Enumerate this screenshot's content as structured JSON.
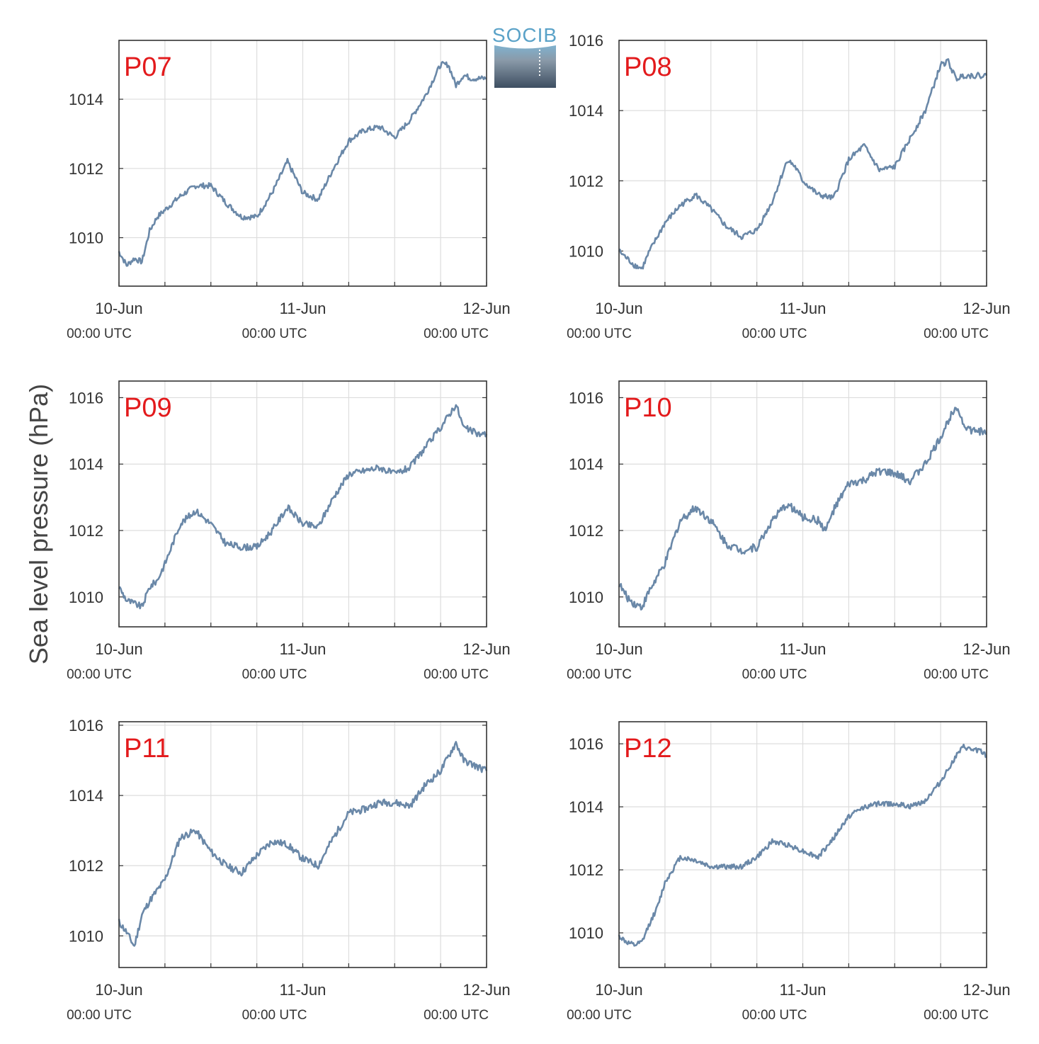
{
  "figure": {
    "ylabel": "Sea level pressure (hPa)",
    "logo_text": "SOCIB"
  },
  "colors": {
    "line": "#6a88a8",
    "label": "#e31a1c",
    "grid": "#dddddd",
    "axis": "#333333",
    "logo": "#5aa2c8"
  },
  "chart_data": [
    {
      "type": "line",
      "panel": "P07",
      "xlabels": [
        [
          "10-Jun",
          "00:00 UTC"
        ],
        [
          "11-Jun",
          "00:00 UTC"
        ],
        [
          "12-Jun",
          "00:00 UTC"
        ]
      ],
      "xlim": [
        0,
        48
      ],
      "ylim": [
        1008.6,
        1015.7
      ],
      "yticks": [
        1010,
        1012,
        1014
      ],
      "x": [
        0,
        1,
        2,
        3,
        4,
        5,
        6,
        8,
        10,
        12,
        14,
        16,
        18,
        20,
        22,
        24,
        26,
        28,
        30,
        32,
        34,
        36,
        38,
        40,
        42,
        43,
        44,
        45,
        46,
        47,
        48
      ],
      "y": [
        1009.6,
        1009.2,
        1009.4,
        1009.3,
        1010.2,
        1010.6,
        1010.8,
        1011.2,
        1011.5,
        1011.5,
        1011.0,
        1010.6,
        1010.6,
        1011.3,
        1012.2,
        1011.3,
        1011.1,
        1012.0,
        1012.8,
        1013.1,
        1013.2,
        1012.9,
        1013.4,
        1014.1,
        1015.0,
        1015.0,
        1014.4,
        1014.7,
        1014.6,
        1014.6,
        1014.6
      ],
      "noise": 0.08,
      "seed": 7
    },
    {
      "type": "line",
      "panel": "P08",
      "xlabels": [
        [
          "10-Jun",
          "00:00 UTC"
        ],
        [
          "11-Jun",
          "00:00 UTC"
        ],
        [
          "12-Jun",
          "00:00 UTC"
        ]
      ],
      "xlim": [
        0,
        48
      ],
      "ylim": [
        1009.0,
        1016.0
      ],
      "yticks": [
        1010,
        1012,
        1014,
        1016
      ],
      "x": [
        0,
        1,
        2,
        3,
        4,
        5,
        6,
        8,
        10,
        12,
        14,
        16,
        18,
        20,
        22,
        23,
        24,
        26,
        28,
        30,
        32,
        34,
        36,
        38,
        40,
        42,
        43,
        44,
        45,
        46,
        47,
        48
      ],
      "y": [
        1010.0,
        1009.8,
        1009.6,
        1009.5,
        1010.0,
        1010.4,
        1010.8,
        1011.3,
        1011.6,
        1011.2,
        1010.7,
        1010.4,
        1010.6,
        1011.4,
        1012.6,
        1012.4,
        1012.0,
        1011.6,
        1011.5,
        1012.6,
        1013.0,
        1012.3,
        1012.4,
        1013.2,
        1014.0,
        1015.3,
        1015.4,
        1014.9,
        1015.0,
        1015.0,
        1015.0,
        1015.0
      ],
      "noise": 0.08,
      "seed": 8
    },
    {
      "type": "line",
      "panel": "P09",
      "xlabels": [
        [
          "10-Jun",
          "00:00 UTC"
        ],
        [
          "11-Jun",
          "00:00 UTC"
        ],
        [
          "12-Jun",
          "00:00 UTC"
        ]
      ],
      "xlim": [
        0,
        48
      ],
      "ylim": [
        1009.1,
        1016.5
      ],
      "yticks": [
        1010,
        1012,
        1014,
        1016
      ],
      "x": [
        0,
        1,
        2,
        3,
        4,
        5,
        6,
        8,
        10,
        12,
        14,
        16,
        18,
        20,
        22,
        24,
        26,
        28,
        30,
        32,
        34,
        36,
        38,
        40,
        42,
        44,
        45,
        46,
        47,
        48
      ],
      "y": [
        1010.3,
        1009.9,
        1009.8,
        1009.7,
        1010.3,
        1010.5,
        1011.0,
        1012.2,
        1012.6,
        1012.2,
        1011.6,
        1011.5,
        1011.5,
        1012.0,
        1012.7,
        1012.2,
        1012.1,
        1013.0,
        1013.7,
        1013.8,
        1013.9,
        1013.7,
        1013.9,
        1014.5,
        1015.1,
        1015.8,
        1015.1,
        1015.0,
        1014.9,
        1014.9
      ],
      "noise": 0.1,
      "seed": 9
    },
    {
      "type": "line",
      "panel": "P10",
      "xlabels": [
        [
          "10-Jun",
          "00:00 UTC"
        ],
        [
          "11-Jun",
          "00:00 UTC"
        ],
        [
          "12-Jun",
          "00:00 UTC"
        ]
      ],
      "xlim": [
        0,
        48
      ],
      "ylim": [
        1009.1,
        1016.5
      ],
      "yticks": [
        1010,
        1012,
        1014,
        1016
      ],
      "x": [
        0,
        1,
        2,
        3,
        4,
        5,
        6,
        8,
        10,
        12,
        14,
        16,
        18,
        20,
        22,
        24,
        26,
        27,
        28,
        30,
        32,
        34,
        36,
        38,
        40,
        42,
        44,
        45,
        46,
        47,
        48
      ],
      "y": [
        1010.4,
        1010.0,
        1009.8,
        1009.7,
        1010.2,
        1010.6,
        1011.0,
        1012.3,
        1012.7,
        1012.3,
        1011.6,
        1011.4,
        1011.5,
        1012.3,
        1012.8,
        1012.4,
        1012.3,
        1012.0,
        1012.6,
        1013.4,
        1013.5,
        1013.8,
        1013.7,
        1013.5,
        1014.0,
        1014.8,
        1015.8,
        1015.2,
        1015.0,
        1015.0,
        1014.9
      ],
      "noise": 0.12,
      "seed": 10
    },
    {
      "type": "line",
      "panel": "P11",
      "xlabels": [
        [
          "10-Jun",
          "00:00 UTC"
        ],
        [
          "11-Jun",
          "00:00 UTC"
        ],
        [
          "12-Jun",
          "00:00 UTC"
        ]
      ],
      "xlim": [
        0,
        48
      ],
      "ylim": [
        1009.1,
        1016.1
      ],
      "yticks": [
        1010,
        1012,
        1014,
        1016
      ],
      "x": [
        0,
        1,
        2,
        3,
        4,
        5,
        6,
        8,
        10,
        12,
        14,
        16,
        18,
        20,
        22,
        24,
        26,
        28,
        30,
        32,
        34,
        36,
        38,
        40,
        42,
        44,
        45,
        46,
        47,
        48
      ],
      "y": [
        1010.4,
        1010.1,
        1009.7,
        1010.6,
        1011.0,
        1011.3,
        1011.6,
        1012.8,
        1013.0,
        1012.4,
        1012.0,
        1011.8,
        1012.3,
        1012.7,
        1012.6,
        1012.2,
        1012.0,
        1012.8,
        1013.5,
        1013.6,
        1013.8,
        1013.8,
        1013.7,
        1014.3,
        1014.7,
        1015.5,
        1015.0,
        1014.9,
        1014.8,
        1014.7
      ],
      "noise": 0.1,
      "seed": 11
    },
    {
      "type": "line",
      "panel": "P12",
      "xlabels": [
        [
          "10-Jun",
          "00:00 UTC"
        ],
        [
          "11-Jun",
          "00:00 UTC"
        ],
        [
          "12-Jun",
          "00:00 UTC"
        ]
      ],
      "xlim": [
        0,
        48
      ],
      "ylim": [
        1008.9,
        1016.7
      ],
      "yticks": [
        1010,
        1012,
        1014,
        1016
      ],
      "x": [
        0,
        1,
        2,
        3,
        4,
        5,
        6,
        8,
        10,
        12,
        14,
        16,
        18,
        20,
        22,
        24,
        26,
        28,
        30,
        32,
        34,
        36,
        38,
        40,
        42,
        44,
        45,
        46,
        47,
        48
      ],
      "y": [
        1009.9,
        1009.7,
        1009.6,
        1009.7,
        1010.3,
        1010.8,
        1011.6,
        1012.4,
        1012.3,
        1012.1,
        1012.1,
        1012.1,
        1012.4,
        1012.9,
        1012.8,
        1012.6,
        1012.4,
        1013.0,
        1013.7,
        1014.0,
        1014.1,
        1014.1,
        1014.0,
        1014.2,
        1014.8,
        1015.6,
        1015.9,
        1015.8,
        1015.8,
        1015.6
      ],
      "noise": 0.08,
      "seed": 12
    }
  ]
}
